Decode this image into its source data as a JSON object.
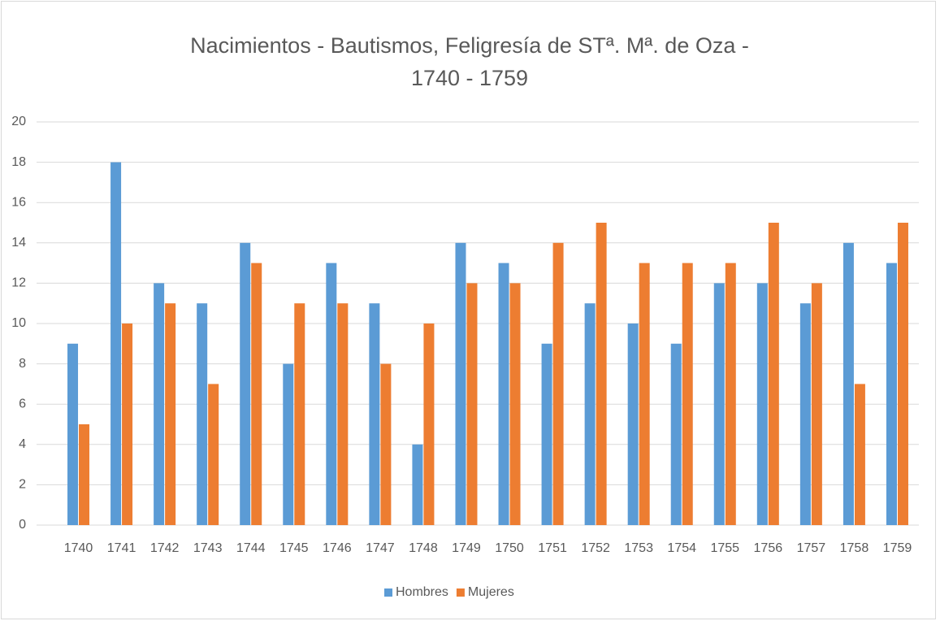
{
  "chart_data": {
    "type": "bar",
    "title": "Nacimientos - Bautismos, Feligresía de STª. Mª. de Oza - 1740 - 1759",
    "categories": [
      "1740",
      "1741",
      "1742",
      "1743",
      "1744",
      "1745",
      "1746",
      "1747",
      "1748",
      "1749",
      "1750",
      "1751",
      "1752",
      "1753",
      "1754",
      "1755",
      "1756",
      "1757",
      "1758",
      "1759"
    ],
    "series": [
      {
        "name": "Hombres",
        "color": "#5b9bd5",
        "values": [
          9,
          18,
          12,
          11,
          14,
          8,
          13,
          11,
          4,
          14,
          13,
          9,
          11,
          10,
          9,
          12,
          12,
          11,
          14,
          13
        ]
      },
      {
        "name": "Mujeres",
        "color": "#ed7d31",
        "values": [
          5,
          10,
          11,
          7,
          13,
          11,
          11,
          8,
          10,
          12,
          12,
          14,
          15,
          13,
          13,
          13,
          15,
          12,
          7,
          15
        ]
      }
    ],
    "ylim": [
      0,
      20
    ],
    "yticks": [
      0,
      2,
      4,
      6,
      8,
      10,
      12,
      14,
      16,
      18,
      20
    ],
    "grid": true,
    "legend": "bottom"
  }
}
